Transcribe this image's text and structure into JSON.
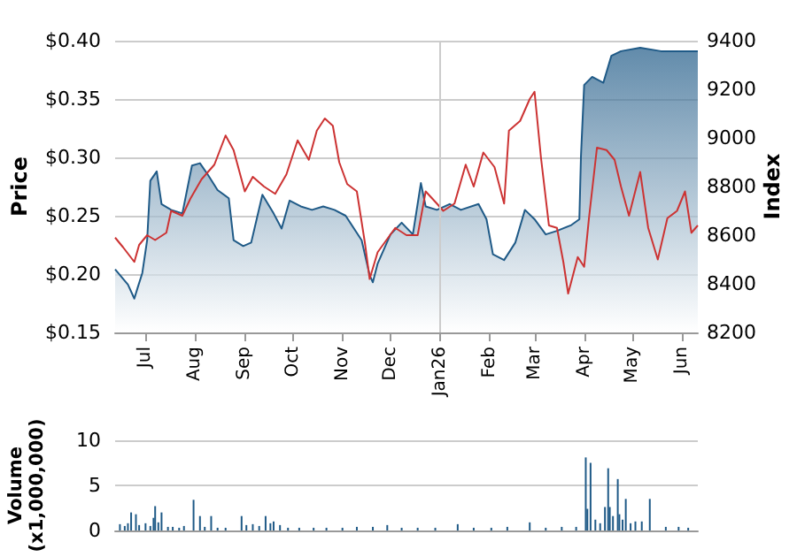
{
  "chart_data": [
    {
      "type": "line",
      "ylabel": "Price",
      "y2label": "Index",
      "xlim": [
        "2025-06-12",
        "2026-06-11"
      ],
      "xticks": [
        {
          "value": "2025-07-01",
          "label": "Jul"
        },
        {
          "value": "2025-08-01",
          "label": "Aug"
        },
        {
          "value": "2025-09-01",
          "label": "Sep"
        },
        {
          "value": "2025-10-01",
          "label": "Oct"
        },
        {
          "value": "2025-11-01",
          "label": "Nov"
        },
        {
          "value": "2025-12-01",
          "label": "Dec"
        },
        {
          "value": "2026-01-01",
          "label": "Jan26"
        },
        {
          "value": "2026-02-01",
          "label": "Feb"
        },
        {
          "value": "2026-03-01",
          "label": "Mar"
        },
        {
          "value": "2026-04-01",
          "label": "Apr"
        },
        {
          "value": "2026-05-01",
          "label": "May"
        },
        {
          "value": "2026-06-01",
          "label": "Jun"
        }
      ],
      "ylim": [
        0.15,
        0.4
      ],
      "yticks": [
        {
          "value": 0.15,
          "label": "$0.15"
        },
        {
          "value": 0.2,
          "label": "$0.20"
        },
        {
          "value": 0.25,
          "label": "$0.25"
        },
        {
          "value": 0.3,
          "label": "$0.30"
        },
        {
          "value": 0.35,
          "label": "$0.35"
        },
        {
          "value": 0.4,
          "label": "$0.40"
        }
      ],
      "y2lim": [
        8200,
        9400
      ],
      "y2ticks": [
        8200,
        8400,
        8600,
        8800,
        9000,
        9200,
        9400
      ],
      "grid": "y",
      "marker": "none",
      "ref_lines": [
        {
          "axis": "x",
          "value": "2026-01-01",
          "color": "#cccccc"
        }
      ],
      "series": [
        {
          "type": "area",
          "color": "#1f5a87",
          "x": [
            "2025-06-12",
            "2025-06-20",
            "2025-06-24",
            "2025-06-26",
            "2025-06-29",
            "2025-07-02",
            "2025-07-04",
            "2025-07-08",
            "2025-07-11",
            "2025-07-17",
            "2025-07-24",
            "2025-07-30",
            "2025-08-04",
            "2025-08-09",
            "2025-08-15",
            "2025-08-22",
            "2025-08-25",
            "2025-08-31",
            "2025-09-05",
            "2025-09-12",
            "2025-09-19",
            "2025-09-24",
            "2025-09-29",
            "2025-10-06",
            "2025-10-13",
            "2025-10-20",
            "2025-10-27",
            "2025-11-03",
            "2025-11-13",
            "2025-11-18",
            "2025-11-20",
            "2025-11-23",
            "2025-12-01",
            "2025-12-08",
            "2025-12-15",
            "2025-12-20",
            "2025-12-23",
            "2025-12-30",
            "2026-01-07",
            "2026-01-14",
            "2026-01-25",
            "2026-01-30",
            "2026-02-03",
            "2026-02-10",
            "2026-02-17",
            "2026-02-23",
            "2026-03-01",
            "2026-03-08",
            "2026-03-15",
            "2026-03-24",
            "2026-03-29",
            "2026-03-30",
            "2026-04-01",
            "2026-04-06",
            "2026-04-13",
            "2026-04-18",
            "2026-04-24",
            "2026-05-06",
            "2026-05-19",
            "2026-06-11"
          ],
          "values": [
            0.204,
            0.191,
            0.179,
            0.188,
            0.201,
            0.229,
            0.28,
            0.288,
            0.26,
            0.255,
            0.252,
            0.293,
            0.295,
            0.285,
            0.272,
            0.265,
            0.229,
            0.224,
            0.227,
            0.268,
            0.252,
            0.239,
            0.263,
            0.258,
            0.255,
            0.258,
            0.255,
            0.25,
            0.229,
            0.199,
            0.193,
            0.209,
            0.234,
            0.244,
            0.234,
            0.278,
            0.258,
            0.255,
            0.26,
            0.255,
            0.26,
            0.247,
            0.217,
            0.212,
            0.227,
            0.255,
            0.247,
            0.234,
            0.237,
            0.242,
            0.247,
            0.301,
            0.362,
            0.369,
            0.364,
            0.387,
            0.391,
            0.394,
            0.391,
            0.391
          ]
        },
        {
          "type": "line",
          "axis": "y2",
          "color": "#cc3333",
          "x": [
            "2025-06-12",
            "2025-06-17",
            "2025-06-24",
            "2025-06-27",
            "2025-07-02",
            "2025-07-07",
            "2025-07-14",
            "2025-07-17",
            "2025-07-24",
            "2025-07-29",
            "2025-08-05",
            "2025-08-13",
            "2025-08-20",
            "2025-08-25",
            "2025-09-01",
            "2025-09-06",
            "2025-09-13",
            "2025-09-20",
            "2025-09-27",
            "2025-10-04",
            "2025-10-11",
            "2025-10-16",
            "2025-10-21",
            "2025-10-26",
            "2025-10-30",
            "2025-11-04",
            "2025-11-10",
            "2025-11-15",
            "2025-11-18",
            "2025-11-23",
            "2025-12-04",
            "2025-12-11",
            "2025-12-18",
            "2025-12-23",
            "2025-12-30",
            "2026-01-03",
            "2026-01-10",
            "2026-01-17",
            "2026-01-22",
            "2026-01-28",
            "2026-02-04",
            "2026-02-10",
            "2026-02-13",
            "2026-02-20",
            "2026-02-26",
            "2026-03-01",
            "2026-03-05",
            "2026-03-10",
            "2026-03-15",
            "2026-03-19",
            "2026-03-22",
            "2026-03-28",
            "2026-04-01",
            "2026-04-04",
            "2026-04-09",
            "2026-04-15",
            "2026-04-20",
            "2026-04-24",
            "2026-04-29",
            "2026-05-06",
            "2026-05-11",
            "2026-05-17",
            "2026-05-23",
            "2026-05-29",
            "2026-06-03",
            "2026-06-07",
            "2026-06-11"
          ],
          "values": [
            8590,
            8550,
            8490,
            8560,
            8600,
            8580,
            8610,
            8700,
            8680,
            8750,
            8830,
            8890,
            9010,
            8950,
            8780,
            8840,
            8800,
            8770,
            8850,
            8990,
            8910,
            9030,
            9080,
            9050,
            8900,
            8810,
            8780,
            8570,
            8420,
            8530,
            8630,
            8600,
            8600,
            8780,
            8730,
            8700,
            8730,
            8890,
            8800,
            8940,
            8880,
            8730,
            9030,
            9070,
            9160,
            9190,
            8920,
            8640,
            8630,
            8490,
            8360,
            8510,
            8470,
            8670,
            8960,
            8950,
            8910,
            8800,
            8680,
            8860,
            8630,
            8500,
            8670,
            8700,
            8780,
            8610,
            8640
          ]
        }
      ]
    },
    {
      "type": "bar",
      "ylabel": "Volume (x1,000,000)",
      "tick_labels": "y",
      "grid": "y",
      "color": "#1f5a87",
      "xlim": [
        "2025-06-12",
        "2026-06-11"
      ],
      "ylim": [
        0,
        10
      ],
      "yticks": [
        0,
        5,
        10
      ],
      "x": [
        "2025-06-15",
        "2025-06-18",
        "2025-06-20",
        "2025-06-22",
        "2025-06-25",
        "2025-06-27",
        "2025-07-01",
        "2025-07-04",
        "2025-07-06",
        "2025-07-07",
        "2025-07-09",
        "2025-07-11",
        "2025-07-15",
        "2025-07-18",
        "2025-07-22",
        "2025-07-25",
        "2025-07-31",
        "2025-08-04",
        "2025-08-07",
        "2025-08-11",
        "2025-08-15",
        "2025-08-20",
        "2025-08-30",
        "2025-09-02",
        "2025-09-06",
        "2025-09-10",
        "2025-09-14",
        "2025-09-17",
        "2025-09-19",
        "2025-09-23",
        "2025-09-28",
        "2025-10-05",
        "2025-10-14",
        "2025-10-22",
        "2025-11-01",
        "2025-11-10",
        "2025-11-20",
        "2025-11-29",
        "2025-12-08",
        "2025-12-18",
        "2025-12-29",
        "2026-01-12",
        "2026-01-22",
        "2026-02-02",
        "2026-02-12",
        "2026-02-26",
        "2026-03-08",
        "2026-03-18",
        "2026-03-27",
        "2026-04-02",
        "2026-04-03",
        "2026-04-05",
        "2026-04-08",
        "2026-04-11",
        "2026-04-14",
        "2026-04-16",
        "2026-04-17",
        "2026-04-19",
        "2026-04-22",
        "2026-04-23",
        "2026-04-25",
        "2026-04-27",
        "2026-04-30",
        "2026-05-03",
        "2026-05-07",
        "2026-05-12",
        "2026-05-22",
        "2026-05-30",
        "2026-06-05"
      ],
      "values": [
        0.7,
        0.5,
        0.8,
        2.0,
        1.8,
        0.6,
        0.8,
        0.5,
        1.4,
        2.7,
        0.9,
        2.0,
        0.4,
        0.4,
        0.3,
        0.5,
        3.4,
        1.6,
        0.4,
        1.6,
        0.3,
        0.3,
        1.6,
        0.6,
        0.7,
        0.5,
        1.6,
        0.8,
        1.0,
        0.6,
        0.3,
        0.3,
        0.3,
        0.3,
        0.3,
        0.4,
        0.4,
        0.6,
        0.3,
        0.3,
        0.3,
        0.7,
        0.3,
        0.3,
        0.4,
        0.9,
        0.3,
        0.4,
        0.4,
        8.1,
        2.4,
        7.5,
        1.2,
        0.8,
        2.6,
        6.9,
        2.6,
        1.6,
        5.7,
        1.8,
        1.2,
        3.5,
        0.8,
        1.0,
        1.0,
        3.5,
        0.4,
        0.4,
        0.3
      ]
    }
  ]
}
